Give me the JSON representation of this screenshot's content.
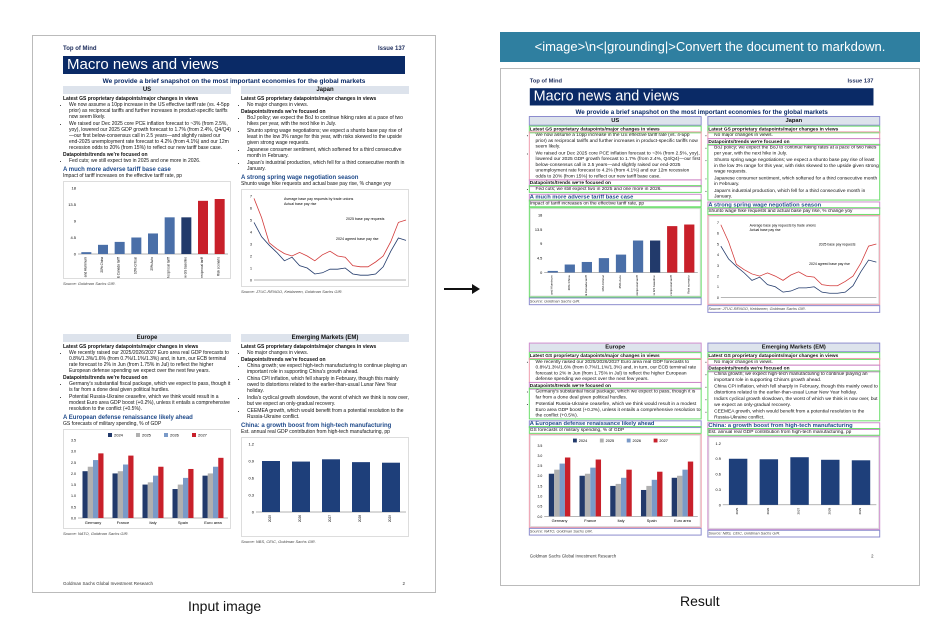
{
  "banner": "<image>\\n<|grounding|>Convert the document to markdown.",
  "captions": {
    "left": "Input image",
    "right": "Result"
  },
  "doc": {
    "top_left": "Top of Mind",
    "top_right": "Issue 137",
    "title": "Macro news and views",
    "subtitle": "We provide a brief snapshot on the most important economies for the global markets",
    "us": {
      "header": "US",
      "latest": "Latest GS proprietary datapoints/major changes in views",
      "bullets": [
        "We now assume a 10pp increase in the US effective tariff rate (vs. 4-5pp prior) as reciprocal tariffs and further increases in product-specific tariffs now seem likely.",
        "We raised our Dec 2025 core PCE inflation forecast to ~3% (from 2.5%, yoy), lowered our 2025 GDP growth forecast to 1.7% (from 2.4%, Q4/Q4)—our first below-consensus call in 2.5 years—and slightly raised our end-2025 unemployment rate forecast to 4.2% (from 4.1%) and our 12m recession odds to 20% (from 15%) to reflect our new tariff base case."
      ],
      "focus": "Datapoints/trends we're focused on",
      "focus_bullets": [
        "Fed cuts; we still expect two in 2025 and one more in 2026."
      ],
      "chart_title": "A much more adverse tariff base case",
      "chart_sub": "Impact of tariff increases on the effective tariff rate, pp",
      "source": "Source: Goldman Sachs GIR."
    },
    "japan": {
      "header": "Japan",
      "latest": "Latest GS proprietary datapoints/major changes in views",
      "bullets": [
        "No major changes in views."
      ],
      "focus": "Datapoints/trends we're focused on",
      "focus_bullets": [
        "BoJ policy; we expect the BoJ to continue hiking rates at a pace of two hikes per year, with the next hike in July.",
        "Shunto spring wage negotiations; we expect a shunto base pay rise of least in the low 3% range for this year, with risks skewed to the upside given strong wage requests.",
        "Japanese consumer sentiment, which softened for a third consecutive month in February.",
        "Japan's industrial production, which fell for a third consecutive month in January."
      ],
      "chart_title": "A strong spring wage negotiation season",
      "chart_sub": "Shunto wage hike requests and actual base pay rise, % change yoy",
      "source": "Source: JTUC-RENGO, Keidanren, Goldman Sachs GIR."
    },
    "europe": {
      "header": "Europe",
      "latest": "Latest GS proprietary datapoints/major changes in views",
      "bullets": [
        "We recently raised our 2025/2026/2027 Euro area real GDP forecasts to 0.8%/1.3%/1.6% (from 0.7%/1.1%/1.3%) and, in turn, our ECB terminal rate forecast to 2% in Jun (from 1.75% in Jul) to reflect the higher European defense spending we expect over the next few years."
      ],
      "focus": "Datapoints/trends we're focused on",
      "focus_bullets": [
        "Germany's substantial fiscal package, which we expect to pass, though it is far from a done deal given political hurdles.",
        "Potential Russia-Ukraine ceasefire, which we think would result in a modest Euro area GDP boost (+0.2%), unless it entails a comprehensive resolution to the conflict (+0.5%)."
      ],
      "chart_title": "A European defense renaissance likely ahead",
      "chart_sub": "GS forecasts of military spending, % of GDP",
      "source": "Source: NATO, Goldman Sachs GIR."
    },
    "em": {
      "header": "Emerging Markets (EM)",
      "latest": "Latest GS proprietary datapoints/major changes in views",
      "bullets": [
        "No major changes in views."
      ],
      "focus": "Datapoints/trends we're focused on",
      "focus_bullets": [
        "China growth; we expect high-tech manufacturing to continue playing an important role in supporting China's growth ahead.",
        "China CPI inflation, which fell sharply in February, though this mainly owed to distortions related to the earlier-than-usual Lunar New Year holiday.",
        "India's cyclical growth slowdown, the worst of which we think is now over, but we expect an only-gradual recovery.",
        "CEEMEA growth, which would benefit from a potential resolution to the Russia-Ukraine conflict."
      ],
      "chart_title": "China: a growth boost from high-tech manufacturing",
      "chart_sub": "Est. annual real GDP contribution from high-tech manufacturing, pp",
      "source": "Source: NBS, CEIC, Goldman Sachs GIR."
    },
    "footer_left": "Goldman Sachs Global Investment Research",
    "footer_right": "2"
  },
  "chart_data": [
    {
      "type": "bar",
      "categories": [
        "25% Steel and Aluminum",
        "20% China",
        "Limited Mexico & Canada tariff",
        "10% Critical",
        "25% Auto",
        "Reciprocal tariff",
        "New GS baseline",
        "Additional reciprocal tariff",
        "Risk scenario"
      ],
      "values": [
        0.5,
        2.5,
        3.3,
        4.5,
        5.6,
        10,
        10,
        14.5,
        15
      ],
      "ylim": [
        0,
        18
      ]
    },
    {
      "type": "line",
      "series": [
        {
          "name": "Average base pay requests by trade unions",
          "values": []
        },
        {
          "name": "Actual base pay rise",
          "values": []
        }
      ],
      "annotations": [
        "2025 base pay requests",
        "2024 agreed base pay rise"
      ],
      "ylim": [
        0,
        7
      ]
    },
    {
      "type": "bar",
      "categories": [
        "Germany",
        "France",
        "Italy",
        "Spain",
        "Euro area"
      ],
      "series": [
        {
          "name": "2024",
          "values": [
            2.1,
            2.0,
            1.5,
            1.3,
            1.9
          ]
        },
        {
          "name": "2025",
          "values": [
            2.3,
            2.1,
            1.6,
            1.5,
            2.0
          ]
        },
        {
          "name": "2026",
          "values": [
            2.6,
            2.4,
            1.9,
            1.8,
            2.3
          ]
        },
        {
          "name": "2027",
          "values": [
            2.9,
            2.8,
            2.3,
            2.2,
            2.7
          ]
        }
      ],
      "ylim": [
        0,
        3.5
      ]
    },
    {
      "type": "bar",
      "categories": [
        "2025",
        "2026",
        "2027",
        "2028",
        "2029"
      ],
      "values": [
        0.9,
        0.89,
        0.93,
        0.88,
        0.87
      ],
      "ylim": [
        0,
        1.2
      ]
    }
  ]
}
